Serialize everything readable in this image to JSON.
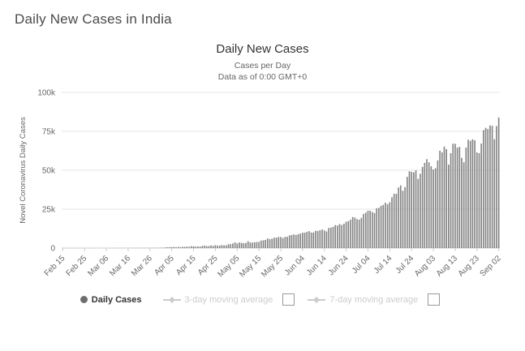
{
  "page": {
    "heading": "Daily New Cases in India"
  },
  "chart": {
    "title": "Daily New Cases",
    "subtitle1": "Cases per Day",
    "subtitle2": "Data as of 0:00 GMT+0",
    "bar_color": "#858585",
    "grid_color": "#e6e6e6",
    "axis_line_color": "#cccccc",
    "label_color": "#666666"
  },
  "legend": {
    "items": [
      {
        "label": "Daily Cases",
        "active": true
      },
      {
        "label": "3-day moving average",
        "active": false
      },
      {
        "label": "7-day moving average",
        "active": false
      }
    ]
  },
  "chart_data": {
    "type": "bar",
    "title": "Daily New Cases",
    "subtitle": [
      "Cases per Day",
      "Data as of 0:00 GMT+0"
    ],
    "ylabel": "Novel Coronavirus Daily Cases",
    "ylim": [
      0,
      100000
    ],
    "yticks": [
      "0",
      "25k",
      "50k",
      "75k",
      "100k"
    ],
    "grid": true,
    "legend_position": "bottom",
    "legend": [
      "Daily Cases",
      "3-day moving average",
      "7-day moving average"
    ],
    "x_tick_every": 10,
    "x_tick_labels": [
      "Feb 15",
      "Feb 25",
      "Mar 06",
      "Mar 16",
      "Mar 26",
      "Apr 05",
      "Apr 15",
      "Apr 25",
      "May 05",
      "May 15",
      "May 25",
      "Jun 04",
      "Jun 14",
      "Jun 24",
      "Jul 04",
      "Jul 14",
      "Jul 24",
      "Aug 03",
      "Aug 13",
      "Aug 23",
      "Sep 02"
    ],
    "values": [
      0,
      0,
      0,
      0,
      0,
      0,
      0,
      0,
      0,
      0,
      0,
      0,
      0,
      0,
      0,
      0,
      2,
      1,
      6,
      5,
      4,
      3,
      8,
      6,
      11,
      13,
      10,
      9,
      23,
      27,
      15,
      24,
      28,
      35,
      49,
      63,
      81,
      87,
      75,
      87,
      121,
      75,
      142,
      113,
      146,
      227,
      146,
      424,
      486,
      560,
      579,
      704,
      508,
      773,
      540,
      854,
      758,
      909,
      796,
      1248,
      1076,
      941,
      1061,
      922,
      1371,
      1580,
      1239,
      1292,
      1667,
      1408,
      1835,
      1607,
      1561,
      1902,
      1702,
      1801,
      2396,
      2564,
      2952,
      3656,
      2971,
      3602,
      3344,
      3113,
      3277,
      4353,
      3604,
      3525,
      3722,
      3877,
      3967,
      4794,
      4987,
      5242,
      6154,
      5720,
      6023,
      6654,
      6665,
      7113,
      7111,
      6414,
      7246,
      7254,
      8138,
      8364,
      8789,
      8392,
      8909,
      9304,
      9851,
      9851,
      10438,
      10882,
      9987,
      9985,
      11128,
      10956,
      11458,
      11929,
      11376,
      10667,
      12881,
      13103,
      13586,
      14721,
      14516,
      15413,
      14821,
      15601,
      16922,
      17296,
      18185,
      19906,
      19620,
      18522,
      18256,
      19429,
      21947,
      22771,
      24018,
      23942,
      23135,
      22510,
      25571,
      25790,
      27114,
      27754,
      29108,
      28179,
      29429,
      32682,
      34884,
      34820,
      38902,
      40243,
      36810,
      39170,
      45720,
      49310,
      48916,
      48661,
      49931,
      44457,
      47703,
      52123,
      54750,
      57118,
      55078,
      52509,
      50488,
      51282,
      56282,
      62538,
      61455,
      65156,
      63490,
      53601,
      60963,
      67066,
      66999,
      64553,
      65002,
      57981,
      55079,
      64531,
      69652,
      68898,
      69878,
      69239,
      61408,
      60975,
      67151,
      75760,
      77266,
      76472,
      78761,
      78512,
      69921,
      78357,
      83883
    ]
  }
}
